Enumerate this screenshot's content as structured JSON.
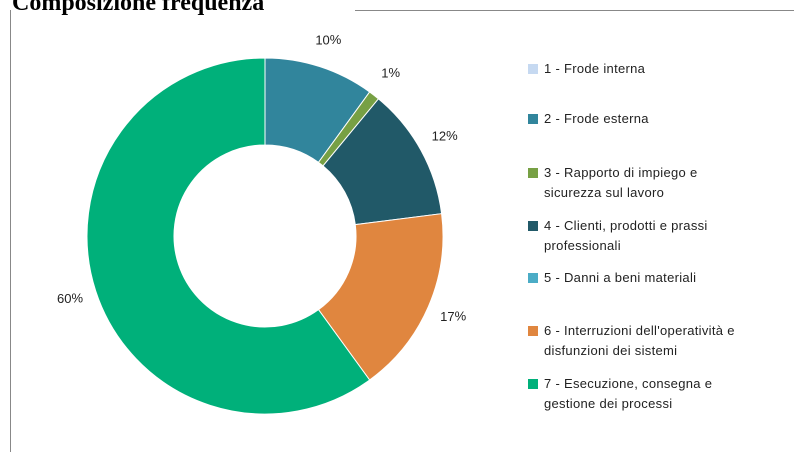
{
  "chart_data": {
    "type": "donut",
    "title": "Composizione frequenza",
    "categories": [
      "1 - Frode interna",
      "2 - Frode esterna",
      "3 - Rapporto di impiego e sicurezza sul lavoro",
      "4 - Clienti, prodotti e prassi professionali",
      "5 - Danni a beni materiali",
      "6 - Interruzioni dell'operatività e disfunzioni dei sistemi",
      "7 - Esecuzione, consegna e gestione dei processi"
    ],
    "values": [
      0,
      10,
      1,
      12,
      0,
      17,
      60
    ],
    "colors": [
      "#c6d9f1",
      "#31859c",
      "#77a044",
      "#215968",
      "#4bacc6",
      "#e0863f",
      "#00b07a"
    ],
    "legend": "right"
  }
}
